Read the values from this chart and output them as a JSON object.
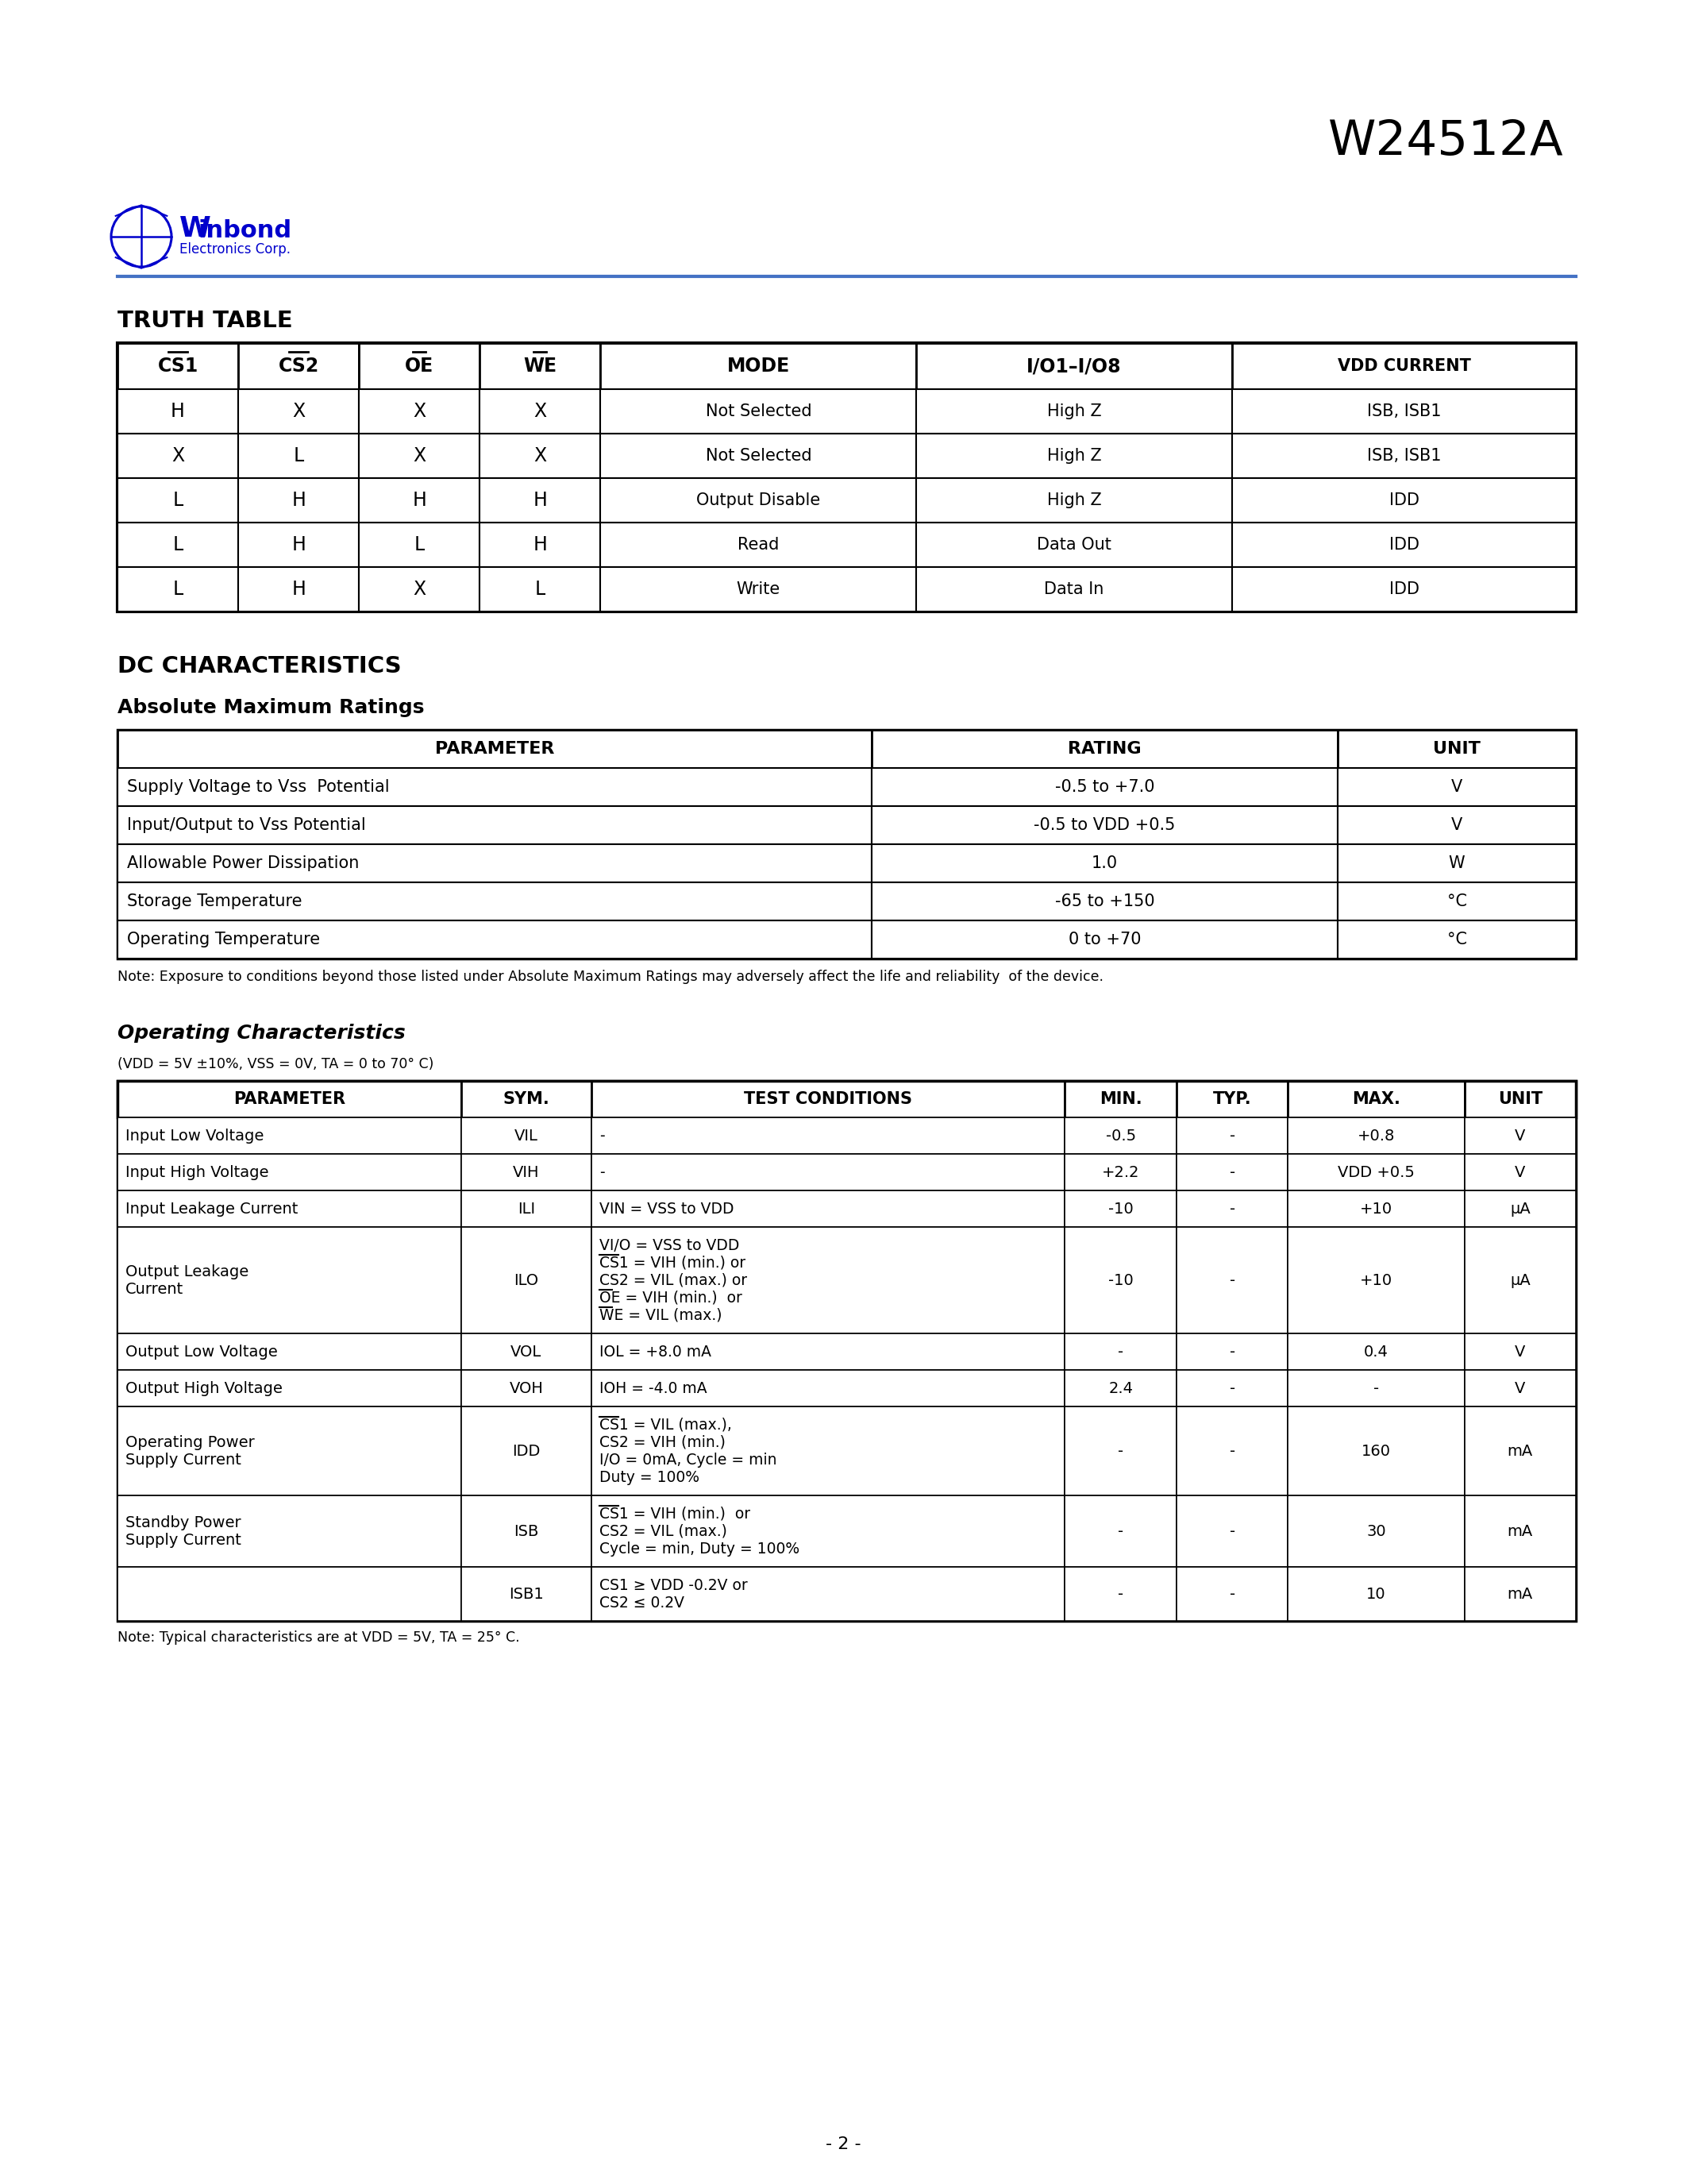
{
  "title": "W24512A",
  "page_number": "- 2 -",
  "bg": "#ffffff",
  "blue": "#0000CC",
  "blue_line": "#4472C4",
  "truth_table": {
    "title": "TRUTH TABLE",
    "headers": [
      "CS1",
      "CS2",
      "OE",
      "WE",
      "MODE",
      "I/O1–I/O8",
      "VDD CURRENT"
    ],
    "headers_overline": [
      true,
      true,
      true,
      true,
      false,
      false,
      false
    ],
    "rows": [
      [
        "H",
        "X",
        "X",
        "X",
        "Not Selected",
        "High Z",
        "ISB, ISB1"
      ],
      [
        "X",
        "L",
        "X",
        "X",
        "Not Selected",
        "High Z",
        "ISB, ISB1"
      ],
      [
        "L",
        "H",
        "H",
        "H",
        "Output Disable",
        "High Z",
        "IDD"
      ],
      [
        "L",
        "H",
        "L",
        "H",
        "Read",
        "Data Out",
        "IDD"
      ],
      [
        "L",
        "H",
        "X",
        "L",
        "Write",
        "Data In",
        "IDD"
      ]
    ]
  },
  "dc": {
    "title": "DC CHARACTERISTICS",
    "amr_title": "Absolute Maximum Ratings",
    "amr_headers": [
      "PARAMETER",
      "RATING",
      "UNIT"
    ],
    "amr_rows": [
      [
        "Supply Voltage to Vss  Potential",
        "-0.5 to +7.0",
        "V"
      ],
      [
        "Input/Output to Vss Potential",
        "-0.5 to VDD +0.5",
        "V"
      ],
      [
        "Allowable Power Dissipation",
        "1.0",
        "W"
      ],
      [
        "Storage Temperature",
        "-65 to +150",
        "°C"
      ],
      [
        "Operating Temperature",
        "0 to +70",
        "°C"
      ]
    ],
    "amr_note": "Note: Exposure to conditions beyond those listed under Absolute Maximum Ratings may adversely affect the life and reliability  of the device.",
    "oc_title": "Operating Characteristics",
    "oc_sub": "(VDD = 5V ±10%, VSS = 0V, TA = 0 to 70° C)",
    "oc_headers": [
      "PARAMETER",
      "SYM.",
      "TEST CONDITIONS",
      "MIN.",
      "TYP.",
      "MAX.",
      "UNIT"
    ],
    "oc_rows": [
      {
        "param": "Input Low Voltage",
        "sym": "VIL",
        "sym_ov": false,
        "cond": [
          "-"
        ],
        "cond_ov": [
          false
        ],
        "min": "-0.5",
        "typ": "-",
        "max": "+0.8",
        "unit": "V"
      },
      {
        "param": "Input High Voltage",
        "sym": "VIH",
        "sym_ov": false,
        "cond": [
          "-"
        ],
        "cond_ov": [
          false
        ],
        "min": "+2.2",
        "typ": "-",
        "max": "VDD +0.5",
        "unit": "V"
      },
      {
        "param": "Input Leakage Current",
        "sym": "ILI",
        "sym_ov": false,
        "cond": [
          "VIN = VSS to VDD"
        ],
        "cond_ov": [
          false
        ],
        "min": "-10",
        "typ": "-",
        "max": "+10",
        "unit": "μA"
      },
      {
        "param": "Output Leakage\nCurrent",
        "sym": "ILO",
        "sym_ov": false,
        "cond": [
          "VI/O = VSS to VDD",
          "CS1 = VIH (min.) or",
          "CS2 = VIL (max.) or",
          "OE = VIH (min.)  or",
          "WE = VIL (max.)"
        ],
        "cond_ov": [
          false,
          true,
          false,
          true,
          true
        ],
        "min": "-10",
        "typ": "-",
        "max": "+10",
        "unit": "μA"
      },
      {
        "param": "Output Low Voltage",
        "sym": "VOL",
        "sym_ov": false,
        "cond": [
          "IOL = +8.0 mA"
        ],
        "cond_ov": [
          false
        ],
        "min": "-",
        "typ": "-",
        "max": "0.4",
        "unit": "V"
      },
      {
        "param": "Output High Voltage",
        "sym": "VOH",
        "sym_ov": false,
        "cond": [
          "IOH = -4.0 mA"
        ],
        "cond_ov": [
          false
        ],
        "min": "2.4",
        "typ": "-",
        "max": "-",
        "unit": "V"
      },
      {
        "param": "Operating Power\nSupply Current",
        "sym": "IDD",
        "sym_ov": false,
        "cond": [
          "CS1 = VIL (max.),",
          "CS2 = VIH (min.)",
          "I/O = 0mA, Cycle = min",
          "Duty = 100%"
        ],
        "cond_ov": [
          true,
          false,
          false,
          false
        ],
        "min": "-",
        "typ": "-",
        "max": "160",
        "unit": "mA"
      },
      {
        "param": "Standby Power\nSupply Current",
        "sym": "ISB",
        "sym_ov": false,
        "cond": [
          "CS1 = VIH (min.)  or",
          "CS2 = VIL (max.)",
          "Cycle = min, Duty = 100%"
        ],
        "cond_ov": [
          true,
          false,
          false
        ],
        "min": "-",
        "typ": "-",
        "max": "30",
        "unit": "mA"
      },
      {
        "param": "",
        "sym": "ISB1",
        "sym_ov": false,
        "cond": [
          "CS1 ≥ VDD -0.2V or",
          "CS2 ≤ 0.2V"
        ],
        "cond_ov": [
          false,
          false
        ],
        "min": "-",
        "typ": "-",
        "max": "10",
        "unit": "mA"
      }
    ],
    "oc_note": "Note: Typical characteristics are at VDD = 5V, TA = 25° C."
  }
}
